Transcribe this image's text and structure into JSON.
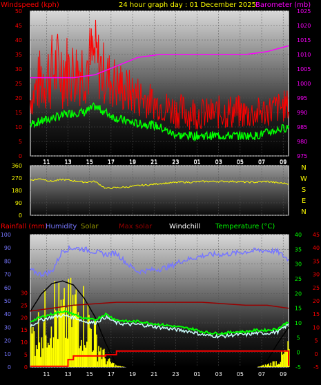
{
  "header": {
    "title": "24 hour graph day : 01 December 2025",
    "windspeed_label": "Windspeed (kph)",
    "barometer_label": "Barometer (mb)"
  },
  "panel2": {
    "compass": [
      "N",
      "W",
      "S",
      "E",
      "N"
    ]
  },
  "panel3": {
    "legend": {
      "rain": "Rainfall (mm)",
      "humidity": "Humidity",
      "solar": "Solar",
      "maxsolar": "Max solar",
      "windchill": "Windchill",
      "temperature": "Temperature (°C)"
    }
  },
  "colors": {
    "windspeed": "#ff0000",
    "gust": "#00ff00",
    "barometer": "#ff00ff",
    "direction": "#ffff00",
    "humidity": "#7777ff",
    "solar": "#ffff00",
    "maxsolar": "#000000",
    "windchill": "#ccffff",
    "temperature": "#00ff00",
    "dewpoint": "#990000",
    "rain": "#ff0000",
    "title": "#ffff00"
  },
  "chart_data": [
    {
      "type": "line",
      "title": "24 hour graph day : 01 December 2025",
      "x_ticks": [
        "11",
        "13",
        "15",
        "17",
        "19",
        "21",
        "23",
        "01",
        "03",
        "05",
        "07",
        "09"
      ],
      "y_left": {
        "label": "Windspeed (kph)",
        "ticks": [
          "0",
          "5",
          "10",
          "15",
          "20",
          "25",
          "30",
          "35",
          "40",
          "45",
          "50"
        ],
        "range": [
          0,
          50
        ]
      },
      "y_right": {
        "label": "Barometer (mb)",
        "ticks": [
          "975",
          "980",
          "985",
          "990",
          "995",
          "1000",
          "1005",
          "1010",
          "1015",
          "1020",
          "1025"
        ],
        "range": [
          975,
          1025
        ]
      },
      "series": [
        {
          "name": "Windspeed (kph)",
          "axis": "left",
          "x": [
            0,
            1,
            2,
            3,
            4,
            5,
            6,
            7,
            8,
            9,
            10,
            11,
            12,
            13,
            14,
            15,
            16,
            17,
            18,
            19,
            20,
            21,
            22,
            23,
            24
          ],
          "values": [
            20,
            30,
            33,
            35,
            32,
            35,
            38,
            30,
            27,
            24,
            22,
            20,
            18,
            17,
            16,
            16,
            15,
            15,
            16,
            16,
            15,
            15,
            16,
            17,
            18
          ]
        },
        {
          "name": "Windspeed (kph) low",
          "axis": "left",
          "x": [
            0,
            1,
            2,
            3,
            4,
            5,
            6,
            7,
            8,
            9,
            10,
            11,
            12,
            13,
            14,
            15,
            16,
            17,
            18,
            19,
            20,
            21,
            22,
            23,
            24
          ],
          "values": [
            11,
            12,
            13,
            14,
            15,
            15,
            17,
            15,
            13,
            12,
            11,
            11,
            10,
            8,
            7,
            7,
            7,
            7,
            7,
            7,
            7,
            7,
            8,
            9,
            10
          ]
        },
        {
          "name": "Barometer (mb)",
          "axis": "right",
          "x": [
            0,
            2,
            4,
            6,
            8,
            10,
            12,
            14,
            16,
            18,
            20,
            22,
            24
          ],
          "values": [
            1002,
            1002,
            1002,
            1003,
            1006,
            1009,
            1010,
            1010,
            1010,
            1010,
            1010,
            1011,
            1013
          ]
        }
      ]
    },
    {
      "type": "line",
      "x_ticks": [
        "11",
        "13",
        "15",
        "17",
        "19",
        "21",
        "23",
        "01",
        "03",
        "05",
        "07",
        "09"
      ],
      "y_left": {
        "ticks": [
          "0",
          "90",
          "180",
          "270",
          "360"
        ],
        "range": [
          0,
          360
        ]
      },
      "y_right": {
        "ticks": [
          "N",
          "W",
          "S",
          "E",
          "N"
        ]
      },
      "series": [
        {
          "name": "Wind direction",
          "x": [
            0,
            1,
            2,
            3,
            4,
            5,
            6,
            7,
            8,
            9,
            10,
            11,
            12,
            13,
            14,
            15,
            16,
            17,
            18,
            19,
            20,
            21,
            22,
            23,
            24
          ],
          "values": [
            255,
            265,
            245,
            260,
            250,
            240,
            245,
            195,
            200,
            205,
            215,
            220,
            230,
            235,
            240,
            240,
            245,
            245,
            245,
            245,
            240,
            240,
            245,
            235,
            230
          ]
        }
      ]
    },
    {
      "type": "line",
      "x_ticks": [
        "11",
        "13",
        "15",
        "17",
        "19",
        "21",
        "23",
        "01",
        "03",
        "05",
        "07",
        "09"
      ],
      "y_left": {
        "label": "Humidity",
        "ticks": [
          "0",
          "10",
          "20",
          "30",
          "40",
          "50",
          "60",
          "70",
          "80",
          "90",
          "100"
        ],
        "range": [
          0,
          100
        ]
      },
      "y_left_inner": {
        "label": "Rainfall (mm)",
        "ticks": [
          "0",
          "5",
          "10",
          "15",
          "20",
          "25",
          "30"
        ],
        "range": [
          0,
          30
        ]
      },
      "y_right": {
        "label": "Temperature (°C)",
        "ticks": [
          "-5",
          "0",
          "5",
          "10",
          "15",
          "20",
          "25",
          "30",
          "35",
          "40"
        ],
        "range": [
          -5,
          40
        ]
      },
      "y_right_outer": {
        "ticks": [
          "-5",
          "0",
          "5",
          "10",
          "15",
          "20",
          "25",
          "30",
          "35",
          "40",
          "45"
        ]
      },
      "series": [
        {
          "name": "Humidity",
          "x": [
            0,
            1,
            2,
            3,
            4,
            5,
            6,
            7,
            8,
            9,
            10,
            11,
            12,
            13,
            14,
            15,
            16,
            17,
            18,
            19,
            20,
            21,
            22,
            23,
            24
          ],
          "values": [
            73,
            70,
            72,
            88,
            90,
            89,
            87,
            85,
            86,
            78,
            72,
            73,
            74,
            76,
            80,
            82,
            84,
            85,
            85,
            86,
            87,
            88,
            88,
            87,
            81
          ]
        },
        {
          "name": "Temperature (°C)",
          "x": [
            0,
            1,
            2,
            3,
            4,
            5,
            6,
            7,
            8,
            9,
            10,
            11,
            12,
            13,
            14,
            15,
            16,
            17,
            18,
            19,
            20,
            21,
            22,
            23,
            24
          ],
          "values": [
            10.5,
            12,
            13,
            14,
            13,
            11.5,
            11,
            13,
            11,
            10.5,
            10.5,
            10,
            9.5,
            9,
            8.5,
            8,
            7,
            6.5,
            6.5,
            7,
            7,
            7.5,
            7.5,
            8,
            10.5
          ]
        },
        {
          "name": "Windchill",
          "x": [
            0,
            1,
            2,
            3,
            4,
            5,
            6,
            7,
            8,
            9,
            10,
            11,
            12,
            13,
            14,
            15,
            16,
            17,
            18,
            19,
            20,
            21,
            22,
            23,
            24
          ],
          "values": [
            9,
            11,
            12,
            12.5,
            12,
            10.5,
            10,
            12,
            10,
            9.5,
            9.5,
            9,
            8.5,
            8,
            7.5,
            7,
            6,
            5.5,
            5.5,
            6,
            6,
            6.5,
            6.5,
            7,
            9.5
          ]
        },
        {
          "name": "Dew point",
          "x": [
            0,
            2,
            4,
            6,
            8,
            10,
            12,
            14,
            16,
            18,
            20,
            22,
            24
          ],
          "values": [
            14,
            15,
            16,
            16.5,
            17,
            17,
            17,
            17,
            17,
            16.5,
            16,
            16,
            15
          ]
        },
        {
          "name": "Max solar",
          "x": [
            0,
            1,
            2,
            3,
            4,
            5,
            6,
            7,
            8,
            9,
            10,
            11,
            12,
            13,
            14,
            15,
            16,
            17,
            18,
            19,
            20,
            21,
            22,
            23,
            24
          ],
          "values": [
            42,
            55,
            63,
            65,
            62,
            52,
            38,
            18,
            2,
            0,
            0,
            0,
            0,
            0,
            0,
            0,
            0,
            0,
            0,
            0,
            0,
            0,
            5,
            18,
            30
          ]
        },
        {
          "name": "Solar",
          "x": [
            0,
            1,
            2,
            3,
            4,
            5,
            6,
            7,
            8,
            9,
            10,
            11,
            12,
            13,
            14,
            15,
            16,
            17,
            18,
            19,
            20,
            21,
            22,
            23,
            24
          ],
          "values": [
            25,
            35,
            52,
            40,
            50,
            45,
            25,
            6,
            1,
            0,
            0,
            0,
            0,
            0,
            0,
            0,
            0,
            0,
            0,
            0,
            0,
            0,
            2,
            5,
            15
          ]
        },
        {
          "name": "Rainfall (mm)",
          "x": [
            0,
            3,
            3.5,
            4,
            6,
            7,
            8,
            10,
            12,
            14,
            16,
            18,
            20,
            22,
            23.3,
            24
          ],
          "values": [
            0.3,
            0.3,
            3,
            4.5,
            4.5,
            5,
            6.5,
            6.5,
            6.5,
            6.5,
            6.5,
            6.5,
            6.5,
            6.5,
            6.5,
            0.5
          ]
        }
      ]
    }
  ]
}
